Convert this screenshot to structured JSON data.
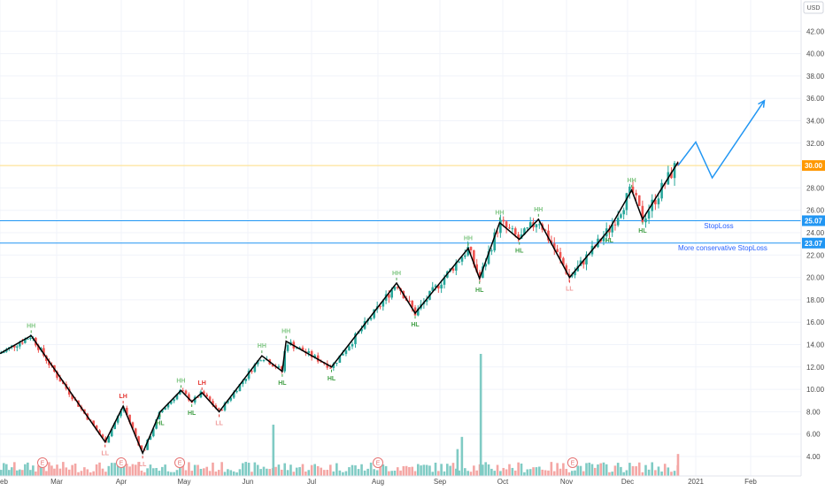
{
  "chart_data": {
    "type": "candlestick",
    "currency_label": "USD",
    "y_ticks": [
      "4.00",
      "6.00",
      "8.00",
      "10.00",
      "12.00",
      "14.00",
      "16.00",
      "18.00",
      "20.00",
      "22.00",
      "24.00",
      "26.00",
      "28.00",
      "30.00",
      "32.00",
      "34.00",
      "36.00",
      "38.00",
      "40.00",
      "42.00"
    ],
    "x_ticks": [
      "eb",
      "Mar",
      "Apr",
      "May",
      "Jun",
      "Jul",
      "Aug",
      "Sep",
      "Oct",
      "Nov",
      "Dec",
      "2021",
      "Feb"
    ],
    "ylim": [
      3,
      44
    ],
    "grid": true,
    "price_badges": [
      {
        "value": 30.0,
        "text": "30.00",
        "color": "#ff9800"
      },
      {
        "value": 25.07,
        "text": "25.07",
        "color": "#2196f3"
      },
      {
        "value": 23.07,
        "text": "23.07",
        "color": "#2196f3"
      }
    ],
    "horizontal_lines": [
      {
        "value": 30.0,
        "color": "#ffe082"
      },
      {
        "value": 25.07,
        "color": "#2196f3"
      },
      {
        "value": 23.07,
        "color": "#2196f3"
      }
    ],
    "annotations": [
      {
        "text": "StopLoss",
        "value": 24.4,
        "t": 11.15
      },
      {
        "text": "More conservative StopLoss",
        "value": 22.4,
        "t": 10.74
      }
    ],
    "zigzag": [
      {
        "t": 0.0,
        "v": 13.2
      },
      {
        "t": 0.55,
        "v": 14.8,
        "label": "HH"
      },
      {
        "t": 1.75,
        "v": 5.3,
        "label": "LL"
      },
      {
        "t": 2.03,
        "v": 8.5,
        "label": "LH"
      },
      {
        "t": 2.34,
        "v": 4.3,
        "label": "LL"
      },
      {
        "t": 2.62,
        "v": 8.0,
        "label": "HL"
      },
      {
        "t": 2.95,
        "v": 9.9,
        "label": "HH"
      },
      {
        "t": 3.12,
        "v": 8.9,
        "label": "HL"
      },
      {
        "t": 3.28,
        "v": 9.7,
        "label": "LH"
      },
      {
        "t": 3.55,
        "v": 8.0,
        "label": "LL"
      },
      {
        "t": 4.22,
        "v": 13.0,
        "label": "HH"
      },
      {
        "t": 4.54,
        "v": 11.6,
        "label": "HL"
      },
      {
        "t": 4.6,
        "v": 14.3,
        "label": "HH"
      },
      {
        "t": 5.3,
        "v": 12.0,
        "label": "HL"
      },
      {
        "t": 6.3,
        "v": 19.5,
        "label": "HH"
      },
      {
        "t": 6.6,
        "v": 16.8,
        "label": "HL"
      },
      {
        "t": 7.45,
        "v": 22.6,
        "label": "HH"
      },
      {
        "t": 7.63,
        "v": 19.9,
        "label": "HL"
      },
      {
        "t": 7.95,
        "v": 24.9,
        "label": "HH"
      },
      {
        "t": 8.26,
        "v": 23.4,
        "label": "HL"
      },
      {
        "t": 8.56,
        "v": 25.2,
        "label": "HH"
      },
      {
        "t": 9.05,
        "v": 20.0,
        "label": "LL"
      },
      {
        "t": 9.7,
        "v": 24.3,
        "label": "HL"
      },
      {
        "t": 10.06,
        "v": 27.8,
        "label": "HH"
      },
      {
        "t": 10.22,
        "v": 25.2,
        "label": "HL"
      },
      {
        "t": 10.74,
        "v": 30.3
      }
    ],
    "projection": [
      {
        "t": 10.74,
        "v": 30.0
      },
      {
        "t": 11.0,
        "v": 32.1
      },
      {
        "t": 11.3,
        "v": 28.9
      },
      {
        "t": 12.25,
        "v": 35.8
      }
    ],
    "volume_spikes": [
      {
        "t": 4.4,
        "h": 0.42
      },
      {
        "t": 7.65,
        "h": 1.0
      },
      {
        "t": 7.35,
        "h": 0.32
      },
      {
        "t": 7.28,
        "h": 0.22
      },
      {
        "t": 10.74,
        "h": 0.18
      }
    ],
    "events": [
      {
        "t": 0.75,
        "text": "E"
      },
      {
        "t": 2.0,
        "text": "E"
      },
      {
        "t": 2.93,
        "text": "E"
      },
      {
        "t": 6.0,
        "text": "E"
      },
      {
        "t": 9.1,
        "text": "E"
      }
    ]
  }
}
